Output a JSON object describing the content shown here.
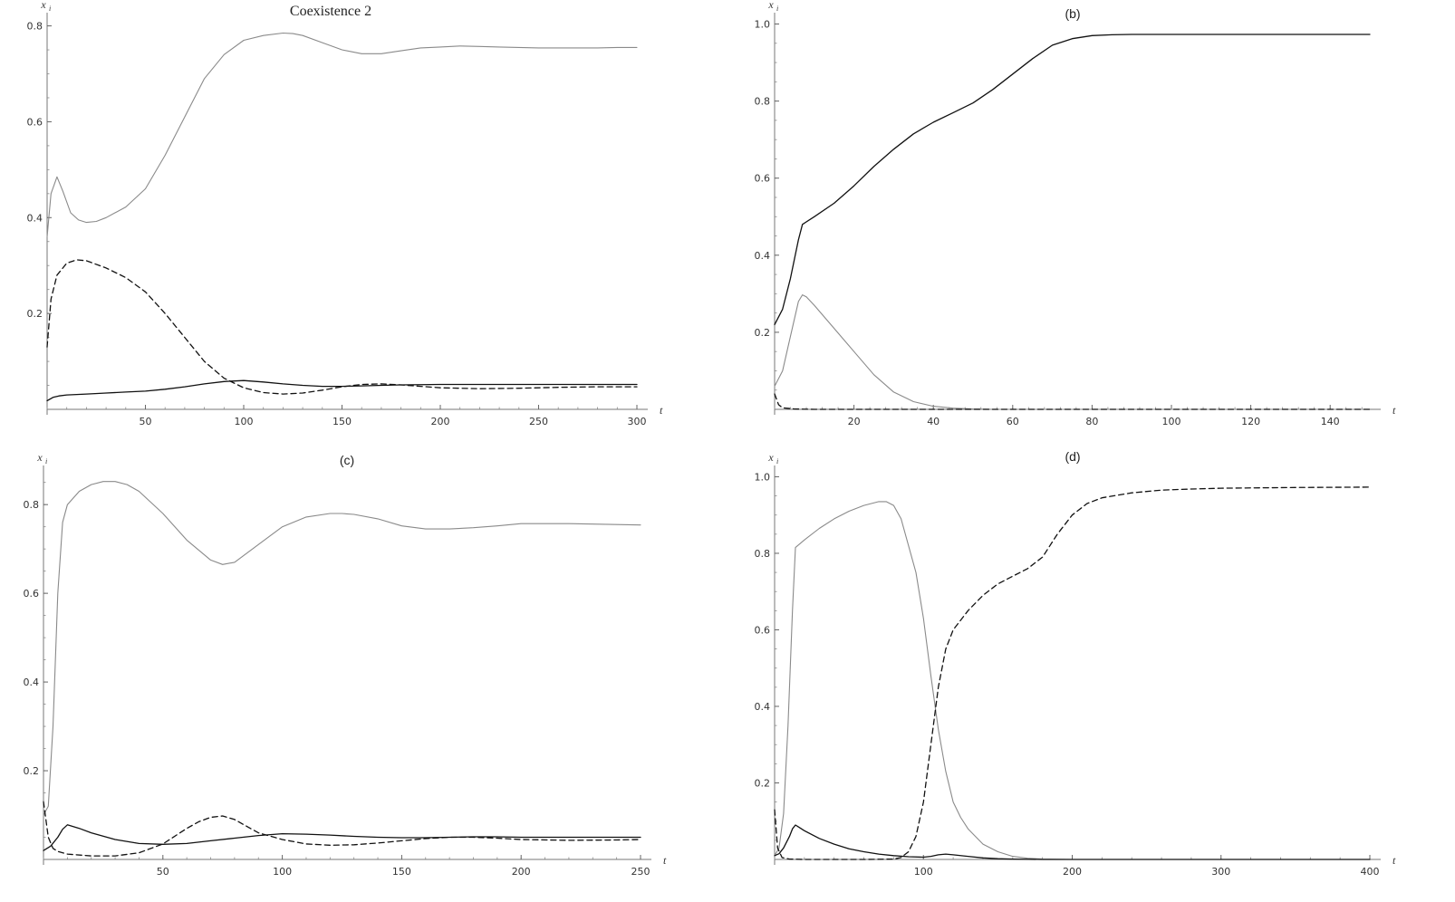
{
  "chart_data": [
    {
      "type": "line",
      "title": "Coexistence 2",
      "xlabel": "t",
      "ylabel": "x",
      "ylabel_sub": "i",
      "xlim": [
        0,
        300
      ],
      "ylim": [
        0,
        0.82
      ],
      "xticks": [
        50,
        100,
        150,
        200,
        250,
        300
      ],
      "yticks": [
        0.2,
        0.4,
        0.6,
        0.8
      ],
      "grid": false,
      "series": [
        {
          "style": "solid",
          "color": "#8a8a8a",
          "x": [
            0,
            2,
            5,
            8,
            12,
            16,
            20,
            25,
            30,
            40,
            50,
            60,
            70,
            80,
            90,
            100,
            110,
            120,
            125,
            130,
            140,
            150,
            160,
            170,
            180,
            190,
            200,
            210,
            220,
            230,
            240,
            250,
            260,
            270,
            280,
            290,
            300
          ],
          "y": [
            0.36,
            0.45,
            0.485,
            0.455,
            0.41,
            0.395,
            0.39,
            0.392,
            0.4,
            0.422,
            0.46,
            0.53,
            0.61,
            0.69,
            0.74,
            0.77,
            0.78,
            0.785,
            0.784,
            0.78,
            0.765,
            0.75,
            0.742,
            0.742,
            0.748,
            0.754,
            0.756,
            0.758,
            0.757,
            0.756,
            0.755,
            0.754,
            0.754,
            0.754,
            0.754,
            0.755,
            0.755
          ]
        },
        {
          "style": "dashed",
          "color": "#111111",
          "x": [
            0,
            2,
            5,
            10,
            15,
            20,
            30,
            40,
            50,
            60,
            70,
            80,
            90,
            100,
            110,
            120,
            130,
            140,
            150,
            160,
            170,
            180,
            190,
            200,
            220,
            240,
            260,
            280,
            300
          ],
          "y": [
            0.13,
            0.23,
            0.28,
            0.305,
            0.312,
            0.31,
            0.295,
            0.275,
            0.245,
            0.2,
            0.15,
            0.1,
            0.065,
            0.045,
            0.035,
            0.032,
            0.034,
            0.04,
            0.047,
            0.052,
            0.053,
            0.051,
            0.048,
            0.045,
            0.043,
            0.044,
            0.046,
            0.047,
            0.047
          ]
        },
        {
          "style": "solid",
          "color": "#111111",
          "x": [
            0,
            3,
            6,
            10,
            20,
            30,
            40,
            50,
            60,
            70,
            80,
            90,
            100,
            110,
            120,
            130,
            140,
            150,
            160,
            170,
            180,
            200,
            220,
            240,
            260,
            280,
            300
          ],
          "y": [
            0.018,
            0.025,
            0.028,
            0.03,
            0.032,
            0.034,
            0.036,
            0.038,
            0.042,
            0.047,
            0.053,
            0.058,
            0.06,
            0.057,
            0.053,
            0.05,
            0.048,
            0.048,
            0.049,
            0.05,
            0.051,
            0.052,
            0.052,
            0.052,
            0.052,
            0.052,
            0.052
          ]
        }
      ]
    },
    {
      "type": "line",
      "title": "(b)",
      "xlabel": "t",
      "ylabel": "x",
      "ylabel_sub": "i",
      "xlim": [
        0,
        150
      ],
      "ylim": [
        0,
        1.02
      ],
      "xticks": [
        20,
        40,
        60,
        80,
        100,
        120,
        140
      ],
      "yticks": [
        0.2,
        0.4,
        0.6,
        0.8,
        1.0
      ],
      "ytick_labels": [
        "0.2",
        "0.4",
        "0.6",
        "0.8",
        "1.0"
      ],
      "grid": false,
      "series": [
        {
          "style": "solid",
          "color": "#111111",
          "x": [
            0,
            2,
            4,
            6,
            7,
            10,
            15,
            20,
            25,
            30,
            35,
            40,
            45,
            50,
            55,
            60,
            65,
            70,
            75,
            80,
            85,
            90,
            100,
            110,
            120,
            130,
            140,
            150
          ],
          "y": [
            0.22,
            0.26,
            0.34,
            0.44,
            0.48,
            0.5,
            0.535,
            0.58,
            0.63,
            0.675,
            0.715,
            0.745,
            0.77,
            0.795,
            0.83,
            0.87,
            0.91,
            0.945,
            0.962,
            0.97,
            0.972,
            0.973,
            0.973,
            0.973,
            0.973,
            0.973,
            0.973,
            0.973
          ]
        },
        {
          "style": "solid",
          "color": "#8a8a8a",
          "x": [
            0,
            2,
            4,
            6,
            7,
            8,
            10,
            15,
            20,
            25,
            30,
            35,
            40,
            45,
            50,
            55,
            60,
            80,
            100,
            150
          ],
          "y": [
            0.06,
            0.1,
            0.19,
            0.28,
            0.297,
            0.292,
            0.27,
            0.21,
            0.15,
            0.09,
            0.045,
            0.02,
            0.008,
            0.003,
            0.001,
            0.0,
            0.0,
            0.0,
            0.0,
            0.0
          ]
        },
        {
          "style": "dashed",
          "color": "#111111",
          "x": [
            0,
            1,
            2,
            5,
            10,
            150
          ],
          "y": [
            0.04,
            0.012,
            0.004,
            0.001,
            0.0,
            0.0
          ]
        }
      ]
    },
    {
      "type": "line",
      "title": "(c)",
      "xlabel": "t",
      "ylabel": "x",
      "ylabel_sub": "i",
      "xlim": [
        0,
        250
      ],
      "ylim": [
        0,
        0.88
      ],
      "xticks": [
        50,
        100,
        150,
        200,
        250
      ],
      "yticks": [
        0.2,
        0.4,
        0.6,
        0.8
      ],
      "grid": false,
      "series": [
        {
          "style": "solid",
          "color": "#8a8a8a",
          "x": [
            0,
            2,
            4,
            6,
            8,
            10,
            15,
            20,
            25,
            30,
            35,
            40,
            50,
            60,
            70,
            75,
            80,
            90,
            100,
            110,
            120,
            125,
            130,
            140,
            150,
            160,
            170,
            180,
            190,
            200,
            220,
            240,
            250
          ],
          "y": [
            0.1,
            0.12,
            0.3,
            0.6,
            0.76,
            0.8,
            0.83,
            0.845,
            0.852,
            0.852,
            0.845,
            0.83,
            0.78,
            0.72,
            0.675,
            0.665,
            0.67,
            0.71,
            0.75,
            0.772,
            0.78,
            0.78,
            0.778,
            0.768,
            0.752,
            0.745,
            0.745,
            0.748,
            0.752,
            0.757,
            0.757,
            0.755,
            0.754
          ]
        },
        {
          "style": "dashed",
          "color": "#111111",
          "x": [
            0,
            2,
            4,
            6,
            10,
            20,
            30,
            40,
            50,
            60,
            65,
            70,
            75,
            80,
            85,
            90,
            100,
            110,
            120,
            130,
            140,
            150,
            160,
            170,
            180,
            190,
            200,
            220,
            240,
            250
          ],
          "y": [
            0.13,
            0.05,
            0.025,
            0.018,
            0.012,
            0.008,
            0.008,
            0.015,
            0.035,
            0.07,
            0.085,
            0.095,
            0.098,
            0.09,
            0.075,
            0.06,
            0.045,
            0.035,
            0.032,
            0.033,
            0.037,
            0.042,
            0.047,
            0.05,
            0.05,
            0.048,
            0.045,
            0.043,
            0.044,
            0.045
          ]
        },
        {
          "style": "solid",
          "color": "#111111",
          "x": [
            0,
            3,
            6,
            8,
            10,
            15,
            20,
            30,
            40,
            50,
            60,
            70,
            80,
            90,
            100,
            110,
            120,
            130,
            140,
            150,
            160,
            170,
            180,
            190,
            200,
            220,
            240,
            250
          ],
          "y": [
            0.02,
            0.03,
            0.05,
            0.068,
            0.078,
            0.07,
            0.06,
            0.045,
            0.036,
            0.034,
            0.036,
            0.042,
            0.048,
            0.054,
            0.058,
            0.057,
            0.055,
            0.052,
            0.05,
            0.049,
            0.049,
            0.05,
            0.051,
            0.051,
            0.05,
            0.05,
            0.05,
            0.05
          ]
        }
      ]
    },
    {
      "type": "line",
      "title": "(d)",
      "xlabel": "t",
      "ylabel": "x",
      "ylabel_sub": "i",
      "xlim": [
        0,
        400
      ],
      "ylim": [
        0,
        1.02
      ],
      "xticks": [
        100,
        200,
        300,
        400
      ],
      "yticks": [
        0.2,
        0.4,
        0.6,
        0.8,
        1.0
      ],
      "ytick_labels": [
        "0.2",
        "0.4",
        "0.6",
        "0.8",
        "1.0"
      ],
      "grid": false,
      "series": [
        {
          "style": "solid",
          "color": "#8a8a8a",
          "x": [
            0,
            3,
            6,
            9,
            12,
            14,
            20,
            30,
            40,
            50,
            60,
            70,
            75,
            80,
            85,
            90,
            95,
            100,
            105,
            110,
            115,
            120,
            125,
            130,
            140,
            150,
            160,
            170,
            180,
            200,
            250,
            300,
            400
          ],
          "y": [
            0.01,
            0.03,
            0.12,
            0.35,
            0.65,
            0.815,
            0.835,
            0.865,
            0.89,
            0.91,
            0.925,
            0.935,
            0.935,
            0.925,
            0.89,
            0.82,
            0.75,
            0.63,
            0.48,
            0.34,
            0.23,
            0.15,
            0.11,
            0.08,
            0.04,
            0.02,
            0.008,
            0.003,
            0.001,
            0.0,
            0.0,
            0.0,
            0.0
          ]
        },
        {
          "style": "dashed",
          "color": "#111111",
          "x": [
            0,
            2,
            5,
            10,
            20,
            40,
            60,
            80,
            85,
            90,
            95,
            100,
            105,
            110,
            115,
            120,
            130,
            140,
            150,
            160,
            170,
            180,
            190,
            200,
            210,
            220,
            240,
            260,
            280,
            300,
            350,
            400
          ],
          "y": [
            0.13,
            0.03,
            0.005,
            0.001,
            0.0,
            0.0,
            0.0,
            0.001,
            0.005,
            0.02,
            0.06,
            0.15,
            0.3,
            0.45,
            0.55,
            0.6,
            0.65,
            0.69,
            0.72,
            0.74,
            0.76,
            0.79,
            0.85,
            0.9,
            0.93,
            0.945,
            0.958,
            0.965,
            0.968,
            0.97,
            0.972,
            0.973
          ]
        },
        {
          "style": "solid",
          "color": "#111111",
          "x": [
            0,
            3,
            6,
            10,
            12,
            14,
            16,
            20,
            30,
            40,
            50,
            60,
            70,
            80,
            90,
            100,
            105,
            110,
            115,
            120,
            130,
            140,
            150,
            160,
            180,
            200,
            250,
            300,
            400
          ],
          "y": [
            0.01,
            0.015,
            0.03,
            0.06,
            0.08,
            0.09,
            0.085,
            0.075,
            0.055,
            0.04,
            0.028,
            0.02,
            0.014,
            0.01,
            0.007,
            0.006,
            0.008,
            0.012,
            0.014,
            0.012,
            0.008,
            0.004,
            0.002,
            0.001,
            0.0,
            0.0,
            0.0,
            0.0,
            0.0
          ]
        }
      ]
    }
  ]
}
